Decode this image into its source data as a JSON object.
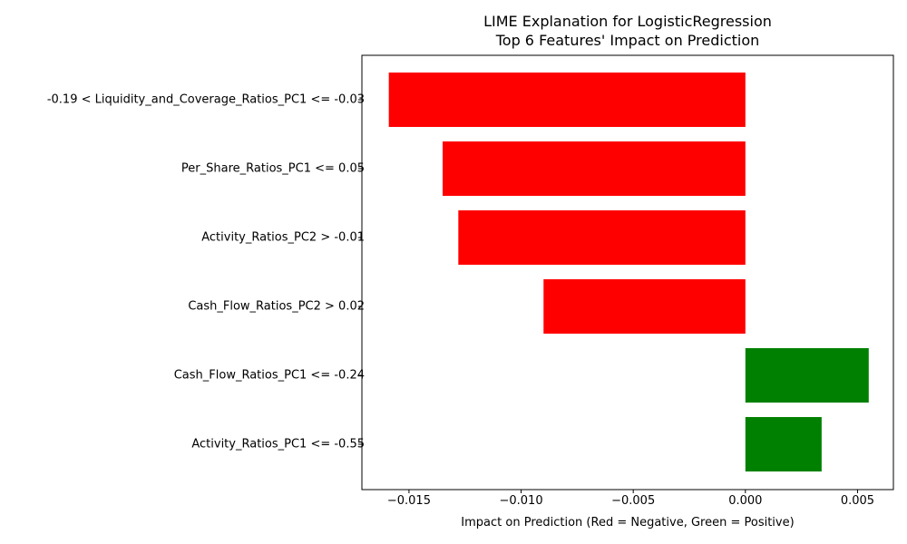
{
  "chart_data": {
    "type": "bar",
    "orientation": "horizontal",
    "title_line1": "LIME Explanation for LogisticRegression",
    "title_line2": "Top 6 Features' Impact on Prediction",
    "xlabel": "Impact on Prediction (Red = Negative, Green = Positive)",
    "ylabel": "",
    "xlim": [
      -0.0171,
      0.0066
    ],
    "categories": [
      "-0.19 < Liquidity_and_Coverage_Ratios_PC1 <= -0.03",
      "Per_Share_Ratios_PC1 <= 0.05",
      "Activity_Ratios_PC2 > -0.01",
      "Cash_Flow_Ratios_PC2 > 0.02",
      "Cash_Flow_Ratios_PC1 <= -0.24",
      "Activity_Ratios_PC1 <= -0.55"
    ],
    "values": [
      -0.0159,
      -0.0135,
      -0.0128,
      -0.009,
      0.0055,
      0.0034
    ],
    "xticks": [
      -0.015,
      -0.01,
      -0.005,
      0.0,
      0.005
    ],
    "xtick_labels": [
      "−0.015",
      "−0.010",
      "−0.005",
      "0.000",
      "0.005"
    ],
    "colors": {
      "negative": "#ff0000",
      "positive": "#008000"
    },
    "grid": false,
    "legend": "none"
  }
}
